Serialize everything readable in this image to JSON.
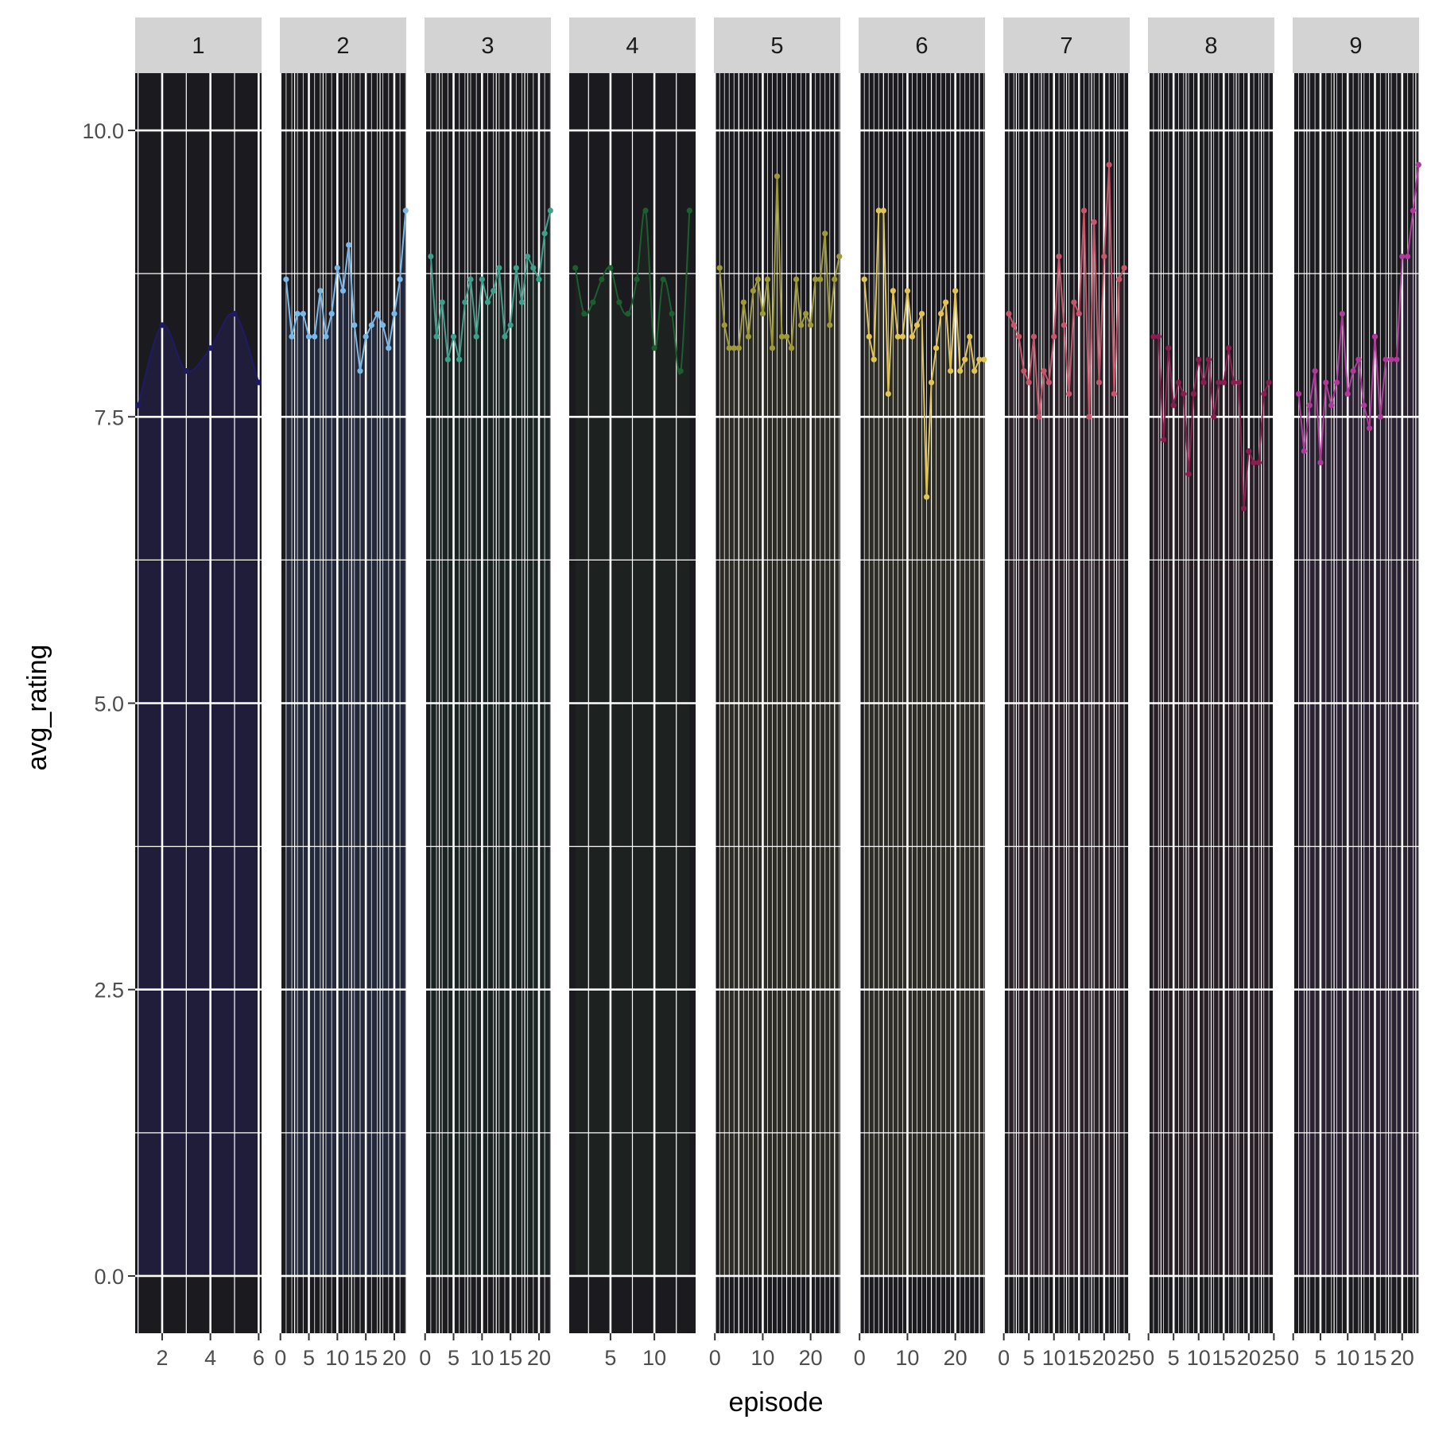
{
  "chart_data": {
    "type": "line",
    "xlabel": "episode",
    "ylabel": "avg_rating",
    "ylim": [
      -0.5,
      10.5
    ],
    "y_ticks": [
      0,
      2.5,
      5,
      7.5,
      10
    ],
    "y_tick_labels": [
      "0.0",
      "2.5",
      "5.0",
      "7.5",
      "10.0"
    ],
    "panel_background": "#1a1a1f",
    "strip_background": "#d3d3d3",
    "grid_color": "#ffffff",
    "panels": [
      {
        "facet": "1",
        "color": "#1f1a66",
        "fill": "#201d3a",
        "smooth": true,
        "xlim": [
          0.88,
          6.12
        ],
        "x_ticks": [
          2,
          4,
          6
        ],
        "x_tick_labels": [
          "2",
          "4",
          "6"
        ],
        "x": [
          1,
          2,
          3,
          4,
          5,
          6
        ],
        "y": [
          7.6,
          8.3,
          7.9,
          8.1,
          8.4,
          7.8
        ]
      },
      {
        "facet": "2",
        "color": "#7bb8e6",
        "fill": "#23283a",
        "smooth": false,
        "xlim": [
          -0.1,
          22.1
        ],
        "x_ticks": [
          0,
          5,
          10,
          15,
          20
        ],
        "x_tick_labels": [
          "0",
          "5",
          "10",
          "15",
          "20"
        ],
        "x": [
          1,
          2,
          3,
          4,
          5,
          6,
          7,
          8,
          9,
          10,
          11,
          12,
          13,
          14,
          15,
          16,
          17,
          18,
          19,
          20,
          21,
          22
        ],
        "y": [
          8.7,
          8.2,
          8.4,
          8.4,
          8.2,
          8.2,
          8.6,
          8.2,
          8.4,
          8.8,
          8.6,
          9.0,
          8.3,
          7.9,
          8.2,
          8.3,
          8.4,
          8.3,
          8.1,
          8.4,
          8.7,
          9.3
        ]
      },
      {
        "facet": "3",
        "color": "#3f9f8a",
        "fill": "#1b2222",
        "smooth": false,
        "xlim": [
          -0.1,
          22.1
        ],
        "x_ticks": [
          0,
          5,
          10,
          15,
          20
        ],
        "x_tick_labels": [
          "0",
          "5",
          "10",
          "15",
          "20"
        ],
        "x": [
          1,
          2,
          3,
          4,
          5,
          6,
          7,
          8,
          9,
          10,
          11,
          12,
          13,
          14,
          15,
          16,
          17,
          18,
          19,
          20,
          21,
          22
        ],
        "y": [
          8.9,
          8.2,
          8.5,
          8.0,
          8.2,
          8.0,
          8.5,
          8.7,
          8.2,
          8.7,
          8.5,
          8.6,
          8.8,
          8.2,
          8.3,
          8.8,
          8.5,
          8.9,
          8.8,
          8.7,
          9.1,
          9.3
        ]
      },
      {
        "facet": "4",
        "color": "#1d5e2e",
        "fill": "#1d211f",
        "smooth": true,
        "xlim": [
          0.3,
          14.7
        ],
        "x_ticks": [
          5,
          10
        ],
        "x_tick_labels": [
          "5",
          "10"
        ],
        "x": [
          1,
          2,
          3,
          4,
          5,
          6,
          7,
          8,
          9,
          10,
          11,
          12,
          13,
          14
        ],
        "y": [
          8.8,
          8.4,
          8.5,
          8.7,
          8.8,
          8.5,
          8.4,
          8.7,
          9.3,
          8.1,
          8.7,
          8.4,
          7.9,
          9.3
        ]
      },
      {
        "facet": "5",
        "color": "#9e9a3a",
        "fill": "#2d2b25",
        "smooth": false,
        "xlim": [
          -0.2,
          26.2
        ],
        "x_ticks": [
          0,
          10,
          20
        ],
        "x_tick_labels": [
          "0",
          "10",
          "20"
        ],
        "x": [
          1,
          2,
          3,
          4,
          5,
          6,
          7,
          8,
          9,
          10,
          11,
          12,
          13,
          14,
          15,
          16,
          17,
          18,
          19,
          20,
          21,
          22,
          23,
          24,
          25,
          26
        ],
        "y": [
          8.8,
          8.3,
          8.1,
          8.1,
          8.1,
          8.5,
          8.2,
          8.6,
          8.7,
          8.4,
          8.7,
          8.1,
          9.6,
          8.2,
          8.2,
          8.1,
          8.7,
          8.3,
          8.4,
          8.3,
          8.7,
          8.7,
          9.1,
          8.3,
          8.7,
          8.9
        ]
      },
      {
        "facet": "6",
        "color": "#e0c456",
        "fill": "#2e2c26",
        "smooth": false,
        "xlim": [
          -0.2,
          26.2
        ],
        "x_ticks": [
          0,
          10,
          20
        ],
        "x_tick_labels": [
          "0",
          "10",
          "20"
        ],
        "x": [
          1,
          2,
          3,
          4,
          5,
          6,
          7,
          8,
          9,
          10,
          11,
          12,
          13,
          14,
          15,
          16,
          17,
          18,
          19,
          20,
          21,
          22,
          23,
          24,
          25,
          26
        ],
        "y": [
          8.7,
          8.2,
          8.0,
          9.3,
          9.3,
          7.7,
          8.6,
          8.2,
          8.2,
          8.6,
          8.2,
          8.3,
          8.4,
          6.8,
          7.8,
          8.1,
          8.4,
          8.5,
          7.9,
          8.6,
          7.9,
          8.0,
          8.2,
          7.9,
          8.0,
          8.0
        ]
      },
      {
        "facet": "7",
        "color": "#c8566a",
        "fill": "#2b2129",
        "smooth": false,
        "xlim": [
          -0.1,
          25.1
        ],
        "x_ticks": [
          0,
          5,
          10,
          15,
          20,
          25
        ],
        "x_tick_labels": [
          "0",
          "5",
          "10",
          "15",
          "20",
          "25"
        ],
        "x": [
          1,
          2,
          3,
          4,
          5,
          6,
          7,
          8,
          9,
          10,
          11,
          12,
          13,
          14,
          15,
          16,
          17,
          18,
          19,
          20,
          21,
          22,
          23,
          24
        ],
        "y": [
          8.4,
          8.3,
          8.2,
          7.9,
          7.8,
          8.2,
          7.5,
          7.9,
          7.8,
          8.2,
          8.9,
          8.3,
          7.7,
          8.5,
          8.4,
          9.3,
          7.5,
          9.2,
          7.8,
          8.9,
          9.7,
          7.7,
          8.7,
          8.8
        ]
      },
      {
        "facet": "8",
        "color": "#8a1e4e",
        "fill": "#271d25",
        "smooth": false,
        "xlim": [
          -0.1,
          25.1
        ],
        "x_ticks": [
          0,
          5,
          10,
          15,
          20,
          25
        ],
        "x_tick_labels": [
          "0",
          "5",
          "10",
          "15",
          "20",
          "25"
        ],
        "x": [
          1,
          2,
          3,
          4,
          5,
          6,
          7,
          8,
          9,
          10,
          11,
          12,
          13,
          14,
          15,
          16,
          17,
          18,
          19,
          20,
          21,
          22,
          23,
          24
        ],
        "y": [
          8.2,
          8.2,
          7.3,
          8.1,
          7.6,
          7.8,
          7.7,
          7.0,
          7.7,
          8.0,
          7.8,
          8.0,
          7.5,
          7.8,
          7.8,
          8.1,
          7.8,
          7.8,
          6.7,
          7.2,
          7.1,
          7.1,
          7.7,
          7.8
        ]
      },
      {
        "facet": "9",
        "color": "#b03a9a",
        "fill": "#2a2232",
        "smooth": false,
        "xlim": [
          -0.1,
          23.1
        ],
        "x_ticks": [
          0,
          5,
          10,
          15,
          20
        ],
        "x_tick_labels": [
          "0",
          "5",
          "10",
          "15",
          "20"
        ],
        "x": [
          1,
          2,
          3,
          4,
          5,
          6,
          7,
          8,
          9,
          10,
          11,
          12,
          13,
          14,
          15,
          16,
          17,
          18,
          19,
          20,
          21,
          22,
          23
        ],
        "y": [
          7.7,
          7.2,
          7.6,
          7.9,
          7.1,
          7.8,
          7.6,
          7.8,
          8.4,
          7.7,
          7.9,
          8.0,
          7.6,
          7.4,
          8.2,
          7.5,
          8.0,
          8.0,
          8.0,
          8.9,
          8.9,
          9.3,
          9.7
        ]
      }
    ]
  }
}
